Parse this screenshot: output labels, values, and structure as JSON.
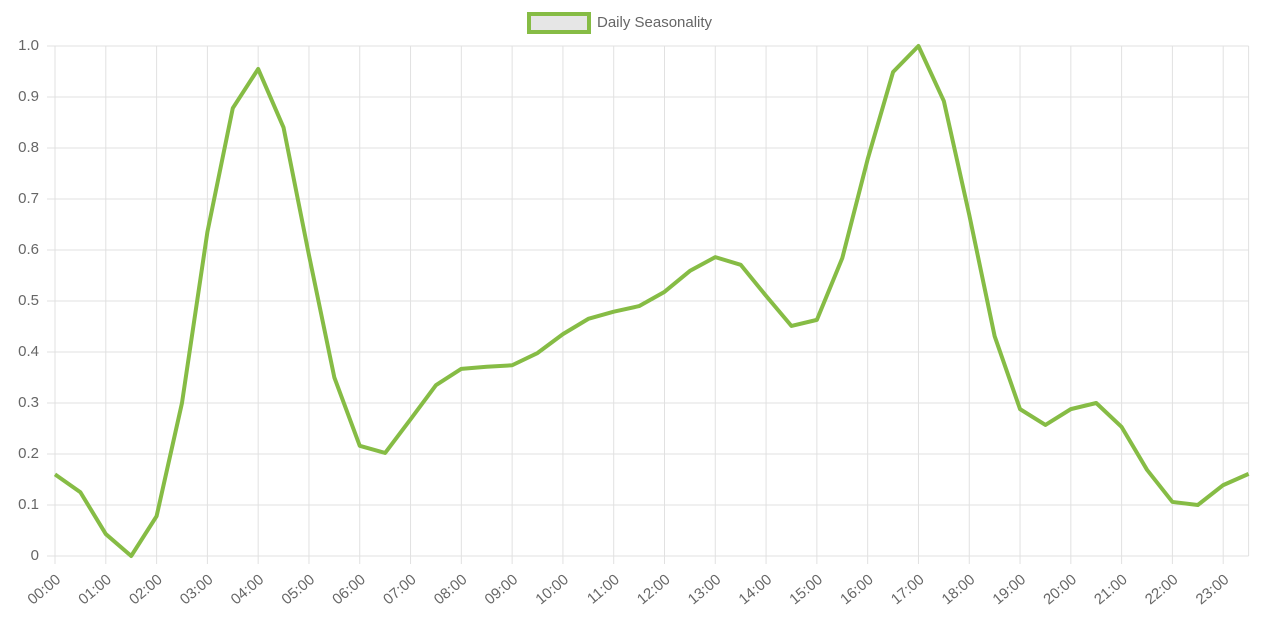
{
  "chart_data": {
    "type": "line",
    "categories": [
      "00:00",
      null,
      "01:00",
      null,
      "02:00",
      null,
      "03:00",
      null,
      "04:00",
      null,
      "05:00",
      null,
      "06:00",
      null,
      "07:00",
      null,
      "08:00",
      null,
      "09:00",
      null,
      "10:00",
      null,
      "11:00",
      null,
      "12:00",
      null,
      "13:00",
      null,
      "14:00",
      null,
      "15:00",
      null,
      "16:00",
      null,
      "17:00",
      null,
      "18:00",
      null,
      "19:00",
      null,
      "20:00",
      null,
      "21:00",
      null,
      "22:00",
      null,
      "23:00",
      null
    ],
    "series": [
      {
        "name": "Daily Seasonality",
        "color": "#86bc45",
        "values": [
          0.16,
          0.125,
          0.043,
          0.0,
          0.078,
          0.3,
          0.635,
          0.878,
          0.955,
          0.84,
          0.59,
          0.35,
          0.216,
          0.202,
          0.268,
          0.335,
          0.367,
          0.371,
          0.374,
          0.398,
          0.435,
          0.465,
          0.479,
          0.49,
          0.518,
          0.559,
          0.586,
          0.571,
          0.51,
          0.451,
          0.463,
          0.584,
          0.778,
          0.949,
          1.0,
          0.892,
          0.669,
          0.431,
          0.288,
          0.257,
          0.288,
          0.3,
          0.253,
          0.169,
          0.106,
          0.1,
          0.139,
          0.161
        ]
      }
    ],
    "ylim": [
      0,
      1
    ],
    "yticks": [
      0,
      0.1,
      0.2,
      0.3,
      0.4,
      0.5,
      0.6,
      0.7,
      0.8,
      0.9,
      {
        "value": 1,
        "label": "1.0"
      }
    ],
    "grid": true,
    "legend": "top"
  }
}
